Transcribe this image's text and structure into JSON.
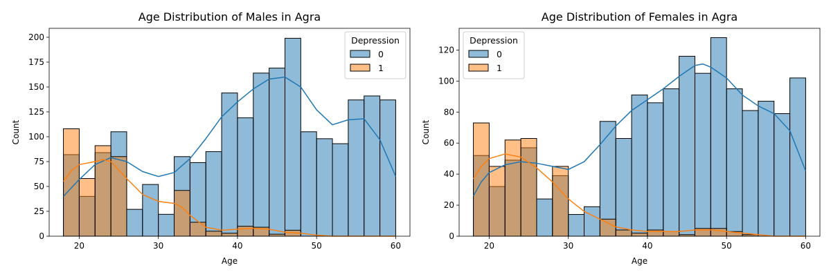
{
  "chart_data": [
    {
      "type": "histogram",
      "title": "Age Distribution of Males in Agra",
      "xlabel": "Age",
      "ylabel": "Count",
      "xlim": [
        16.2,
        61.8
      ],
      "ylim": [
        0,
        209
      ],
      "xticks": [
        20,
        30,
        40,
        50,
        60
      ],
      "yticks": [
        0,
        25,
        50,
        75,
        100,
        125,
        150,
        175,
        200
      ],
      "bin_edges": [
        18,
        20,
        22,
        24,
        26,
        28,
        30,
        32,
        34,
        36,
        38,
        40,
        42,
        44,
        46,
        48,
        50,
        52,
        54,
        56,
        58,
        60
      ],
      "legend": {
        "title": "Depression",
        "position": "upper right"
      },
      "series": [
        {
          "name": "0",
          "color": "#1f77b4",
          "values": [
            82,
            40,
            84,
            105,
            27,
            52,
            22,
            80,
            74,
            85,
            144,
            119,
            164,
            169,
            199,
            105,
            98,
            93,
            137,
            141,
            137
          ],
          "kde": [
            [
              18,
              40
            ],
            [
              20,
              57
            ],
            [
              22,
              72
            ],
            [
              24,
              79
            ],
            [
              26,
              75
            ],
            [
              28,
              65
            ],
            [
              30,
              60
            ],
            [
              32,
              64
            ],
            [
              34,
              78
            ],
            [
              36,
              98
            ],
            [
              38,
              120
            ],
            [
              40,
              135
            ],
            [
              42,
              148
            ],
            [
              44,
              158
            ],
            [
              46,
              160
            ],
            [
              48,
              150
            ],
            [
              50,
              127
            ],
            [
              52,
              112
            ],
            [
              54,
              117
            ],
            [
              56,
              118
            ],
            [
              58,
              97
            ],
            [
              60,
              60
            ]
          ]
        },
        {
          "name": "1",
          "color": "#ff7f0e",
          "values": [
            108,
            58,
            91,
            80,
            0,
            0,
            0,
            46,
            14,
            5,
            3,
            10,
            9,
            2,
            6,
            0,
            0,
            0,
            0,
            0,
            0
          ],
          "kde": [
            [
              18,
              55
            ],
            [
              19,
              66
            ],
            [
              20,
              72
            ],
            [
              22,
              75
            ],
            [
              23,
              77
            ],
            [
              24,
              75
            ],
            [
              26,
              58
            ],
            [
              28,
              42
            ],
            [
              30,
              35
            ],
            [
              32,
              33
            ],
            [
              33,
              29
            ],
            [
              34,
              21
            ],
            [
              36,
              9
            ],
            [
              38,
              6
            ],
            [
              40,
              7
            ],
            [
              42,
              8
            ],
            [
              44,
              7
            ],
            [
              46,
              4
            ],
            [
              48,
              3
            ],
            [
              50,
              1
            ],
            [
              52,
              0
            ],
            [
              56,
              0
            ],
            [
              60,
              0
            ]
          ]
        }
      ]
    },
    {
      "type": "histogram",
      "title": "Age Distribution of Females in Agra",
      "xlabel": "Age",
      "ylabel": "Count",
      "xlim": [
        16.2,
        61.8
      ],
      "ylim": [
        0,
        134
      ],
      "xticks": [
        20,
        30,
        40,
        50,
        60
      ],
      "yticks": [
        0,
        20,
        40,
        60,
        80,
        100,
        120
      ],
      "bin_edges": [
        18,
        20,
        22,
        24,
        26,
        28,
        30,
        32,
        34,
        36,
        38,
        40,
        42,
        44,
        46,
        48,
        50,
        52,
        54,
        56,
        58,
        60
      ],
      "legend": {
        "title": "Depression",
        "position": "upper left"
      },
      "series": [
        {
          "name": "0",
          "color": "#1f77b4",
          "values": [
            52,
            32,
            49,
            57,
            24,
            39,
            14,
            19,
            74,
            63,
            91,
            86,
            95,
            116,
            105,
            128,
            95,
            81,
            87,
            79,
            102
          ],
          "kde": [
            [
              18,
              26
            ],
            [
              19,
              35
            ],
            [
              20,
              41
            ],
            [
              22,
              46
            ],
            [
              24,
              48
            ],
            [
              26,
              47
            ],
            [
              28,
              45
            ],
            [
              30,
              43
            ],
            [
              32,
              48
            ],
            [
              34,
              59
            ],
            [
              36,
              71
            ],
            [
              38,
              81
            ],
            [
              40,
              88
            ],
            [
              42,
              95
            ],
            [
              44,
              103
            ],
            [
              46,
              110
            ],
            [
              47,
              111
            ],
            [
              48,
              109
            ],
            [
              50,
              102
            ],
            [
              52,
              91
            ],
            [
              54,
              84
            ],
            [
              56,
              79
            ],
            [
              58,
              68
            ],
            [
              60,
              42
            ]
          ]
        },
        {
          "name": "1",
          "color": "#ff7f0e",
          "values": [
            73,
            45,
            62,
            63,
            0,
            45,
            0,
            0,
            11,
            4,
            2,
            4,
            3,
            1,
            5,
            5,
            3,
            1,
            0,
            0,
            0
          ],
          "kde": [
            [
              18,
              37
            ],
            [
              19,
              45
            ],
            [
              20,
              50
            ],
            [
              22,
              53
            ],
            [
              24,
              51
            ],
            [
              26,
              44
            ],
            [
              28,
              35
            ],
            [
              30,
              24
            ],
            [
              32,
              16
            ],
            [
              34,
              11
            ],
            [
              36,
              6
            ],
            [
              38,
              4
            ],
            [
              40,
              3
            ],
            [
              42,
              3
            ],
            [
              44,
              3
            ],
            [
              46,
              4
            ],
            [
              48,
              4
            ],
            [
              50,
              3
            ],
            [
              52,
              2
            ],
            [
              54,
              1
            ],
            [
              56,
              0
            ],
            [
              60,
              0
            ]
          ]
        }
      ]
    }
  ]
}
